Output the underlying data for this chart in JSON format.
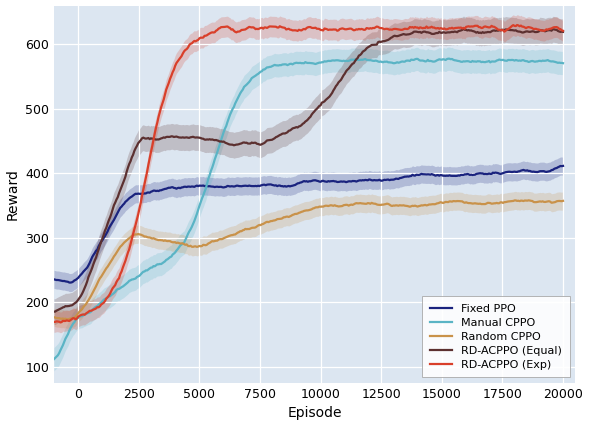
{
  "xlabel": "Episode",
  "ylabel": "Reward",
  "xlim": [
    -1000,
    20500
  ],
  "ylim": [
    75,
    660
  ],
  "yticks": [
    100,
    200,
    300,
    400,
    500,
    600
  ],
  "xticks": [
    0,
    2500,
    5000,
    7500,
    10000,
    12500,
    15000,
    17500,
    20000
  ],
  "bg_color": "#dce6f1",
  "colors": {
    "fixed_ppo": "#1a237e",
    "manual_cppo": "#5ab4c5",
    "random_cppo": "#c9924a",
    "rd_equal": "#5c3030",
    "rd_exp": "#d93f2a"
  },
  "n_points": 400,
  "x_start": -1000,
  "x_end": 20000
}
